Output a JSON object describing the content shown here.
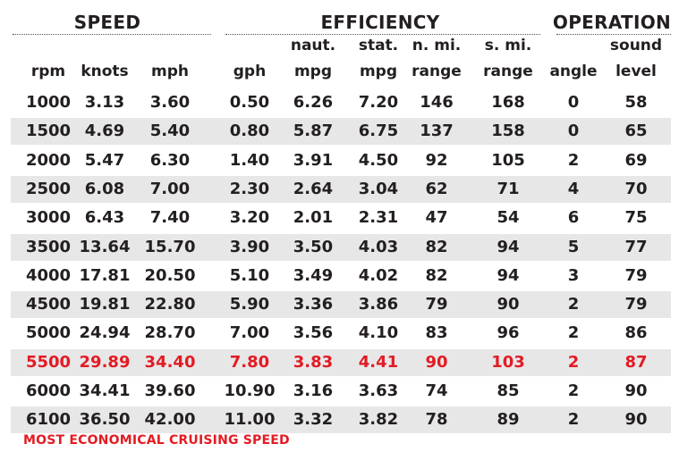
{
  "groups": {
    "speed": "SPEED",
    "efficiency": "EFFICIENCY",
    "operation": "OPERATION"
  },
  "headers": {
    "rpm": [
      "",
      "rpm"
    ],
    "knots": [
      "",
      "knots"
    ],
    "mph": [
      "",
      "mph"
    ],
    "gph": [
      "",
      "gph"
    ],
    "naut_mpg": [
      "naut.",
      "mpg"
    ],
    "stat_mpg": [
      "stat.",
      "mpg"
    ],
    "nmi_range": [
      "n. mi.",
      "range"
    ],
    "smi_range": [
      "s. mi.",
      "range"
    ],
    "angle": [
      "",
      "angle"
    ],
    "sound_level": [
      "sound",
      "level"
    ]
  },
  "rows": [
    [
      "1000",
      "3.13",
      "3.60",
      "0.50",
      "6.26",
      "7.20",
      "146",
      "168",
      "0",
      "58"
    ],
    [
      "1500",
      "4.69",
      "5.40",
      "0.80",
      "5.87",
      "6.75",
      "137",
      "158",
      "0",
      "65"
    ],
    [
      "2000",
      "5.47",
      "6.30",
      "1.40",
      "3.91",
      "4.50",
      "92",
      "105",
      "2",
      "69"
    ],
    [
      "2500",
      "6.08",
      "7.00",
      "2.30",
      "2.64",
      "3.04",
      "62",
      "71",
      "4",
      "70"
    ],
    [
      "3000",
      "6.43",
      "7.40",
      "3.20",
      "2.01",
      "2.31",
      "47",
      "54",
      "6",
      "75"
    ],
    [
      "3500",
      "13.64",
      "15.70",
      "3.90",
      "3.50",
      "4.03",
      "82",
      "94",
      "5",
      "77"
    ],
    [
      "4000",
      "17.81",
      "20.50",
      "5.10",
      "3.49",
      "4.02",
      "82",
      "94",
      "3",
      "79"
    ],
    [
      "4500",
      "19.81",
      "22.80",
      "5.90",
      "3.36",
      "3.86",
      "79",
      "90",
      "2",
      "79"
    ],
    [
      "5000",
      "24.94",
      "28.70",
      "7.00",
      "3.56",
      "4.10",
      "83",
      "96",
      "2",
      "86"
    ],
    [
      "5500",
      "29.89",
      "34.40",
      "7.80",
      "3.83",
      "4.41",
      "90",
      "103",
      "2",
      "87"
    ],
    [
      "6000",
      "34.41",
      "39.60",
      "10.90",
      "3.16",
      "3.63",
      "74",
      "85",
      "2",
      "90"
    ],
    [
      "6100",
      "36.50",
      "42.00",
      "11.00",
      "3.32",
      "3.82",
      "78",
      "89",
      "2",
      "90"
    ]
  ],
  "highlight_rpm": "5500",
  "colors": {
    "highlight": "#e31b23",
    "shade": "#e7e7e8",
    "text": "#231f20"
  },
  "footnote": "MOST ECONOMICAL CRUISING SPEED"
}
